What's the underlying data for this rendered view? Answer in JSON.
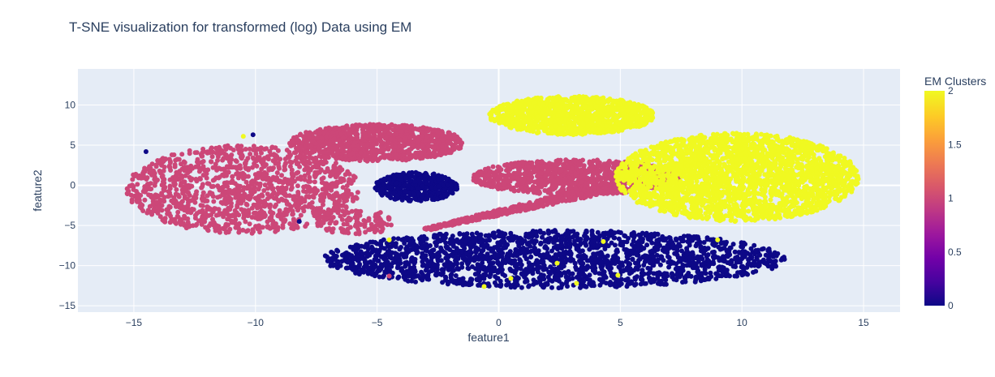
{
  "chart_data": {
    "type": "scatter",
    "title": "T-SNE visualization for transformed (log) Data using EM",
    "xlabel": "feature1",
    "ylabel": "feature2",
    "xlim": [
      -17.3,
      16.5
    ],
    "ylim": [
      -15.8,
      14.5
    ],
    "x_ticks": [
      -15,
      -10,
      -5,
      0,
      5,
      10,
      15
    ],
    "y_ticks": [
      -15,
      -10,
      -5,
      0,
      5,
      10
    ],
    "grid": true,
    "colorbar": {
      "title": "EM Clusters",
      "range": [
        0,
        2
      ],
      "ticks": [
        0,
        0.5,
        1,
        1.5,
        2
      ],
      "colorscale": [
        "#0d0887",
        "#46039f",
        "#7201a8",
        "#9c179e",
        "#bd3786",
        "#d8576b",
        "#ed7953",
        "#fb9f3a",
        "#fdca26",
        "#f0f921"
      ]
    },
    "cluster_colors": {
      "0": "#0d0887",
      "1": "#cc4778",
      "2": "#f0f921"
    },
    "clusters": [
      {
        "value": 1,
        "shape": "ellipse",
        "center": [
          -10.5,
          -0.5
        ],
        "radius": [
          4.8,
          5.5
        ],
        "count": 1250
      },
      {
        "value": 1,
        "shape": "ellipse",
        "center": [
          -5.0,
          5.3
        ],
        "radius": [
          3.6,
          2.3
        ],
        "count": 1000
      },
      {
        "value": 1,
        "shape": "ellipse",
        "center": [
          -5.9,
          -4.6
        ],
        "radius": [
          1.6,
          1.6
        ],
        "count": 120
      },
      {
        "value": 1,
        "shape": "ellipse",
        "center": [
          3.2,
          1.0
        ],
        "radius": [
          4.3,
          2.2
        ],
        "count": 950
      },
      {
        "value": 1,
        "shape": "band",
        "from": [
          -3.0,
          -5.5
        ],
        "to": [
          4.5,
          -0.3
        ],
        "width": 0.8,
        "count": 500
      },
      {
        "value": 0,
        "shape": "ellipse",
        "center": [
          -3.4,
          -0.2
        ],
        "radius": [
          1.7,
          1.8
        ],
        "count": 450
      },
      {
        "value": 0,
        "shape": "ellipse",
        "center": [
          2.3,
          -9.2
        ],
        "radius": [
          9.5,
          3.6
        ],
        "count": 2000
      },
      {
        "value": 2,
        "shape": "ellipse",
        "center": [
          3.0,
          8.7
        ],
        "radius": [
          3.4,
          2.4
        ],
        "count": 1200
      },
      {
        "value": 2,
        "shape": "ellipse",
        "center": [
          9.8,
          1.0
        ],
        "radius": [
          5.0,
          5.5
        ],
        "count": 2500
      }
    ],
    "outliers": [
      {
        "x": -10.1,
        "y": 6.3,
        "value": 0
      },
      {
        "x": -8.2,
        "y": -4.5,
        "value": 0
      },
      {
        "x": -14.5,
        "y": 4.2,
        "value": 0
      },
      {
        "x": -10.5,
        "y": 6.1,
        "value": 2
      },
      {
        "x": -4.5,
        "y": -11.3,
        "value": 1
      },
      {
        "x": -4.5,
        "y": -6.8,
        "value": 2
      },
      {
        "x": -0.6,
        "y": -12.6,
        "value": 2
      },
      {
        "x": 2.4,
        "y": -9.7,
        "value": 2
      },
      {
        "x": 3.2,
        "y": -12.2,
        "value": 2
      },
      {
        "x": 4.3,
        "y": -7.0,
        "value": 2
      },
      {
        "x": 4.9,
        "y": -11.2,
        "value": 2
      },
      {
        "x": 0.5,
        "y": -11.6,
        "value": 2
      },
      {
        "x": 9.0,
        "y": -6.8,
        "value": 2
      }
    ]
  }
}
